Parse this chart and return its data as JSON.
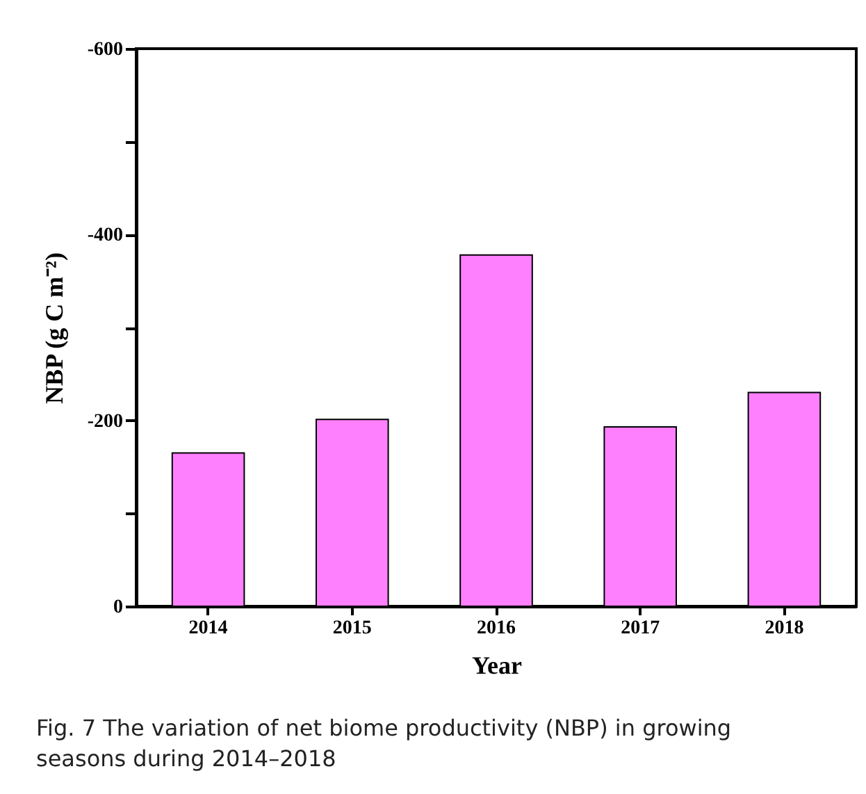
{
  "chart_data": {
    "type": "bar",
    "categories": [
      "2014",
      "2015",
      "2016",
      "2017",
      "2018"
    ],
    "values": [
      -165,
      -201,
      -378,
      -193,
      -230
    ],
    "color": "#ff80ff",
    "xlabel": "Year",
    "ylabel": "NBP (g C m⁻²)",
    "ylim": [
      0,
      -600
    ],
    "yticks": [
      0,
      {
        "value": -100,
        "label": null
      },
      -200,
      {
        "value": -300,
        "label": null
      },
      -400,
      {
        "value": -500,
        "label": null
      },
      -600
    ],
    "grid": false,
    "annotations": [
      "Fig. 7  The variation of net biome productivity (NBP) in growing seasons during 2014–2018"
    ]
  }
}
